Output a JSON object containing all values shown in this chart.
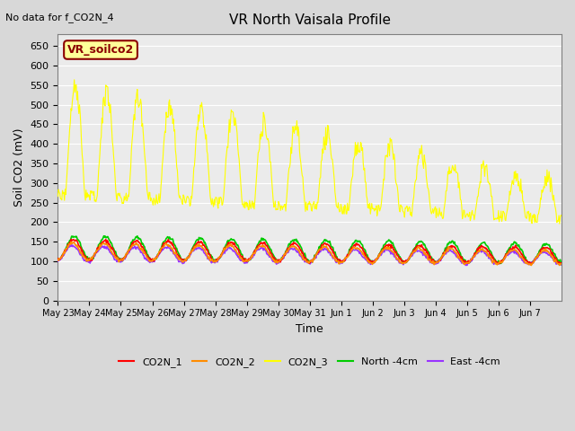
{
  "title": "VR North Vaisala Profile",
  "note": "No data for f_CO2N_4",
  "ylabel": "Soil CO2 (mV)",
  "xlabel": "Time",
  "ylim": [
    0,
    680
  ],
  "yticks": [
    0,
    50,
    100,
    150,
    200,
    250,
    300,
    350,
    400,
    450,
    500,
    550,
    600,
    650
  ],
  "fig_bg_color": "#d8d8d8",
  "plot_bg": "#ebebeb",
  "inset_label": "VR_soilco2",
  "inset_bg": "#ffff99",
  "inset_border": "#8B0000",
  "legend_entries": [
    "CO2N_1",
    "CO2N_2",
    "CO2N_3",
    "North -4cm",
    "East -4cm"
  ],
  "legend_colors": [
    "#ff0000",
    "#ff8c00",
    "#ffff00",
    "#00cc00",
    "#9933ff"
  ],
  "line_colors": {
    "CO2N_1": "#ff0000",
    "CO2N_2": "#ff8c00",
    "CO2N_3": "#ffff00",
    "North_4cm": "#00cc00",
    "East_4cm": "#9933ff"
  },
  "x_tick_labels": [
    "May 23",
    "May 24",
    "May 25",
    "May 26",
    "May 27",
    "May 28",
    "May 29",
    "May 30",
    "May 31",
    "Jun 1",
    "Jun 2",
    "Jun 3",
    "Jun 4",
    "Jun 5",
    "Jun 6",
    "Jun 7"
  ],
  "num_days": 16
}
